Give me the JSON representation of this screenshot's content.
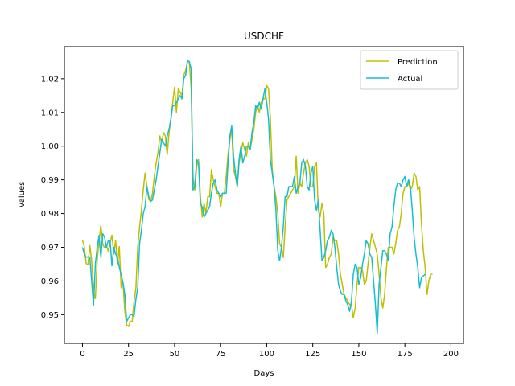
{
  "chart_data": {
    "type": "line",
    "title": "USDCHF",
    "xlabel": "Days",
    "ylabel": "Values",
    "xlim": [
      -9.8,
      206.8
    ],
    "ylim": [
      0.9415,
      1.0295
    ],
    "xticks": [
      0,
      25,
      50,
      75,
      100,
      125,
      150,
      175,
      200
    ],
    "yticks": [
      0.95,
      0.96,
      0.97,
      0.98,
      0.99,
      1.0,
      1.01,
      1.02
    ],
    "ytick_labels": [
      "0.95",
      "0.96",
      "0.97",
      "0.98",
      "0.99",
      "1.00",
      "1.01",
      "1.02"
    ],
    "grid": false,
    "legend_position": "top-right",
    "series": [
      {
        "name": "Prediction",
        "color": "#bfbf00",
        "values": [
          0.9721,
          0.9702,
          0.9652,
          0.9648,
          0.9705,
          0.966,
          0.9572,
          0.9548,
          0.9662,
          0.9718,
          0.9765,
          0.971,
          0.9698,
          0.9705,
          0.9688,
          0.9715,
          0.9736,
          0.968,
          0.9721,
          0.965,
          0.9702,
          0.958,
          0.9595,
          0.951,
          0.947,
          0.9465,
          0.948,
          0.948,
          0.954,
          0.9578,
          0.97,
          0.976,
          0.981,
          0.987,
          0.992,
          0.988,
          0.9842,
          0.9836,
          0.986,
          0.991,
          0.995,
          0.998,
          1.003,
          1.001,
          1.004,
          1.003,
          0.9975,
          1.004,
          1.008,
          1.013,
          1.0175,
          1.01,
          1.017,
          1.016,
          1.015,
          1.021,
          1.0225,
          1.025,
          1.025,
          1.017,
          0.991,
          0.987,
          0.994,
          0.996,
          0.985,
          0.979,
          0.983,
          0.98,
          0.985,
          0.985,
          0.993,
          0.99,
          0.988,
          0.986,
          0.986,
          0.982,
          0.986,
          0.986,
          0.991,
          0.9975,
          1.002,
          1.005,
          0.993,
          0.991,
          0.988,
          0.995,
          0.998,
          1.001,
          0.999,
          0.997,
          1.001,
          0.999,
          1.002,
          1.005,
          1.01,
          1.012,
          1.01,
          1.013,
          1.014,
          1.014,
          1.018,
          1.017,
          1.008,
          0.993,
          0.988,
          0.985,
          0.98,
          0.971,
          0.97,
          0.967,
          0.976,
          0.984,
          0.985,
          0.986,
          0.987,
          0.988,
          0.997,
          0.986,
          0.989,
          0.988,
          0.992,
          0.995,
          0.996,
          0.994,
          0.988,
          0.988,
          0.994,
          0.995,
          0.981,
          0.979,
          0.983,
          0.98,
          0.964,
          0.965,
          0.967,
          0.968,
          0.973,
          0.972,
          0.972,
          0.968,
          0.962,
          0.959,
          0.956,
          0.955,
          0.954,
          0.953,
          0.953,
          0.949,
          0.952,
          0.959,
          0.964,
          0.964,
          0.963,
          0.959,
          0.96,
          0.965,
          0.97,
          0.974,
          0.972,
          0.97,
          0.968,
          0.962,
          0.955,
          0.952,
          0.956,
          0.964,
          0.97,
          0.97,
          0.97,
          0.968,
          0.971,
          0.975,
          0.976,
          0.98,
          0.986,
          0.988,
          0.988,
          0.989,
          0.987,
          0.988,
          0.992,
          0.991,
          0.987,
          0.988,
          0.977,
          0.969,
          0.964,
          0.956,
          0.96,
          0.962,
          0.962
        ]
      },
      {
        "name": "Actual",
        "color": "#17becf",
        "values": [
          0.97,
          0.968,
          0.967,
          0.9672,
          0.967,
          0.96,
          0.9528,
          0.965,
          0.97,
          0.9735,
          0.967,
          0.974,
          0.973,
          0.97,
          0.972,
          0.972,
          0.9645,
          0.97,
          0.968,
          0.967,
          0.964,
          0.962,
          0.9595,
          0.956,
          0.948,
          0.949,
          0.95,
          0.95,
          0.9495,
          0.9545,
          0.958,
          0.971,
          0.975,
          0.98,
          0.982,
          0.988,
          0.985,
          0.9836,
          0.984,
          0.987,
          0.99,
          0.994,
          0.998,
          1.002,
          1.001,
          1.0,
          1.003,
          1.005,
          1.008,
          1.012,
          1.012,
          1.013,
          1.014,
          1.015,
          1.014,
          1.02,
          1.021,
          1.0255,
          1.025,
          1.023,
          0.987,
          0.988,
          0.996,
          0.995,
          0.983,
          0.982,
          0.979,
          0.98,
          0.981,
          0.982,
          0.986,
          0.989,
          0.99,
          0.987,
          0.986,
          0.985,
          0.986,
          0.986,
          0.986,
          0.995,
          1.003,
          1.006,
          0.997,
          0.992,
          0.988,
          0.996,
          1.0,
          0.995,
          0.997,
          1.0,
          1.0,
          0.999,
          1.004,
          1.007,
          1.012,
          1.011,
          1.013,
          1.011,
          1.014,
          1.017,
          1.013,
          1.008,
          0.996,
          0.992,
          0.988,
          0.981,
          0.969,
          0.966,
          0.97,
          0.976,
          0.985,
          0.985,
          0.988,
          0.988,
          0.988,
          0.991,
          0.986,
          0.988,
          0.989,
          0.995,
          0.996,
          0.994,
          0.988,
          0.987,
          0.992,
          0.994,
          0.984,
          0.981,
          0.984,
          0.975,
          0.966,
          0.967,
          0.969,
          0.972,
          0.973,
          0.975,
          0.974,
          0.97,
          0.964,
          0.959,
          0.957,
          0.956,
          0.956,
          0.954,
          0.953,
          0.951,
          0.954,
          0.962,
          0.965,
          0.964,
          0.959,
          0.961,
          0.965,
          0.968,
          0.972,
          0.971,
          0.968,
          0.967,
          0.96,
          0.953,
          0.9445,
          0.959,
          0.964,
          0.969,
          0.969,
          0.968,
          0.966,
          0.974,
          0.976,
          0.982,
          0.987,
          0.989,
          0.989,
          0.988,
          0.99,
          0.991,
          0.988,
          0.99,
          0.988,
          0.981,
          0.973,
          0.968,
          0.964,
          0.958,
          0.961,
          0.9615,
          0.962
        ]
      }
    ]
  }
}
